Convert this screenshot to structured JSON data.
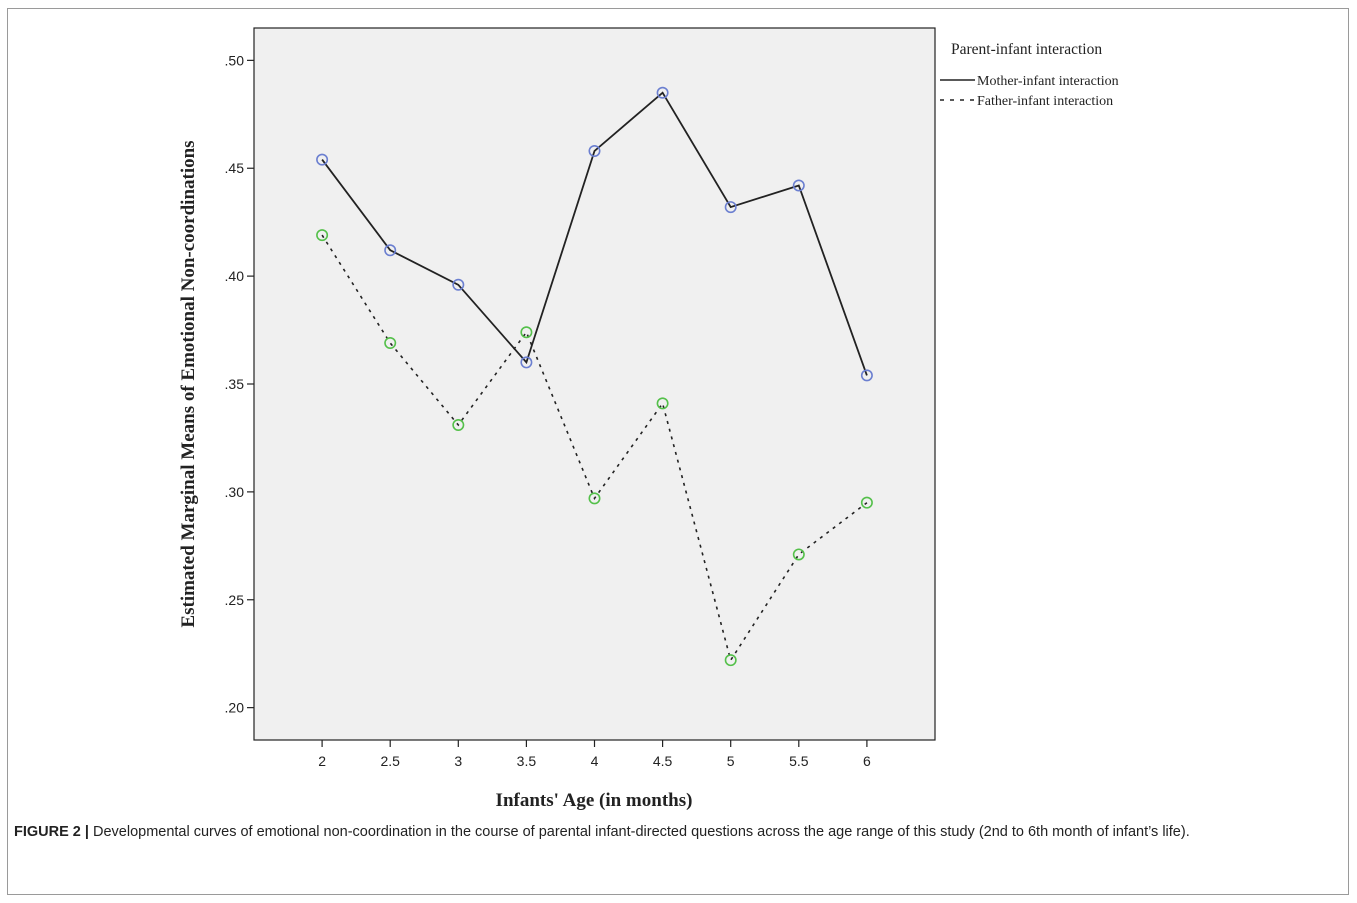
{
  "caption": {
    "label": "FIGURE 2 |",
    "text": " Developmental curves of emotional non-coordination in the course of parental infant-directed questions across the age range of this study (2nd to 6th month of infant’s life)."
  },
  "chart_data": {
    "type": "line",
    "title": "",
    "xlabel": "Infants' Age (in months)",
    "ylabel": "Estimated Marginal Means of Emotional Non-coordinations",
    "categories": [
      "2",
      "2.5",
      "3",
      "3.5",
      "4",
      "4.5",
      "5",
      "5.5",
      "6"
    ],
    "x": [
      2,
      2.5,
      3,
      3.5,
      4,
      4.5,
      5,
      5.5,
      6
    ],
    "xlim": [
      1.5,
      6.5
    ],
    "ylim": [
      0.185,
      0.515
    ],
    "yticks": [
      ".20",
      ".25",
      ".30",
      ".35",
      ".40",
      ".45",
      ".50"
    ],
    "ytick_values": [
      0.2,
      0.25,
      0.3,
      0.35,
      0.4,
      0.45,
      0.5
    ],
    "grid": false,
    "legend": {
      "title": "Parent-infant interaction",
      "placement": "top-right, outside plot"
    },
    "series": [
      {
        "name": "Mother-infant interaction",
        "style": "solid",
        "line_color": "#222222",
        "marker_color": "#6b7fd0",
        "values": [
          0.454,
          0.412,
          0.396,
          0.36,
          0.458,
          0.485,
          0.432,
          0.442,
          0.354
        ]
      },
      {
        "name": "Father-infant interaction",
        "style": "dotted",
        "line_color": "#222222",
        "marker_color": "#54c04a",
        "values": [
          0.419,
          0.369,
          0.331,
          0.374,
          0.297,
          0.341,
          0.222,
          0.271,
          0.295
        ]
      }
    ],
    "colors": {
      "plot_background": "#f0f0f0",
      "axis": "#222222"
    }
  }
}
